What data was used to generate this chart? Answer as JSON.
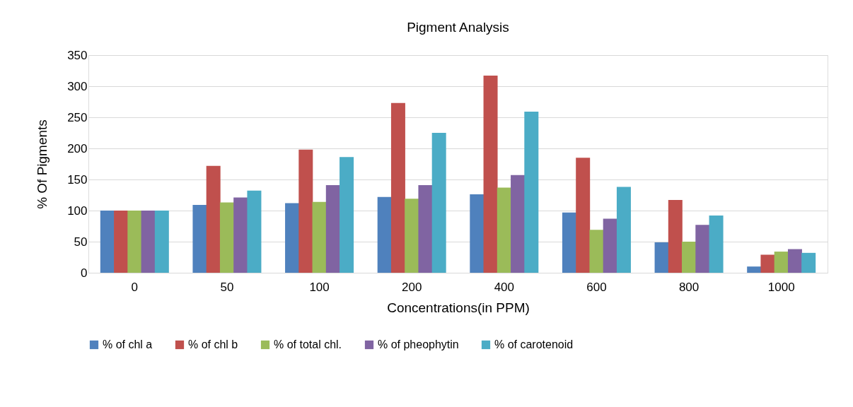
{
  "chart_data": {
    "type": "bar",
    "title": "Pigment Analysis",
    "xlabel": "Concentrations(in PPM)",
    "ylabel": "% Of Pigments",
    "categories": [
      "0",
      "50",
      "100",
      "200",
      "400",
      "600",
      "800",
      "1000"
    ],
    "series": [
      {
        "name": "% of chl a",
        "color": "#4f81bd",
        "values": [
          100,
          109,
          112,
          122,
          126,
          97,
          49,
          10
        ]
      },
      {
        "name": "% of chl b",
        "color": "#c0504d",
        "values": [
          100,
          172,
          198,
          273,
          317,
          185,
          117,
          29
        ]
      },
      {
        "name": "% of total chl.",
        "color": "#9bbb59",
        "values": [
          100,
          113,
          114,
          119,
          137,
          69,
          50,
          34
        ]
      },
      {
        "name": "% of pheophytin",
        "color": "#8064a2",
        "values": [
          100,
          121,
          141,
          141,
          157,
          87,
          77,
          38
        ]
      },
      {
        "name": "% of carotenoid",
        "color": "#4bacc6",
        "values": [
          100,
          132,
          186,
          225,
          259,
          138,
          92,
          32
        ]
      }
    ],
    "ylim": [
      0,
      350
    ],
    "yticks": [
      0,
      50,
      100,
      150,
      200,
      250,
      300,
      350
    ],
    "grid": "y",
    "legend": "bottom"
  }
}
